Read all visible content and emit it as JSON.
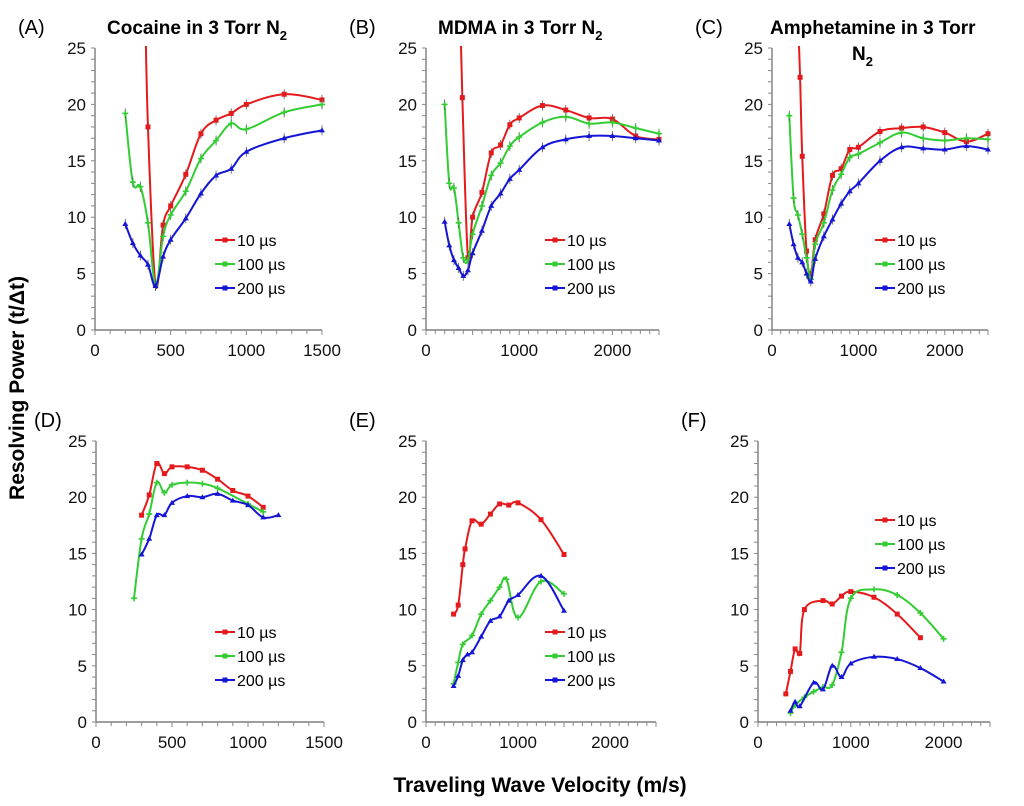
{
  "y_label": "Resolving Power (t/Δt)",
  "x_label": "Traveling Wave Velocity (m/s)",
  "colors": {
    "10 µs": "#e41a1c",
    "100 µs": "#33cc33",
    "200 µs": "#1515d6"
  },
  "chart_data": [
    {
      "id": "A",
      "panel_label": "(A)",
      "type": "line",
      "title": "Cocaine in 3 Torr N",
      "title_sub": "2",
      "xlim": [
        0,
        1500
      ],
      "xticks": [
        "0",
        "500",
        "1000",
        "1500"
      ],
      "ylim": [
        0,
        25
      ],
      "yticks": [
        "0",
        "5",
        "10",
        "15",
        "20",
        "25"
      ],
      "grid": false,
      "error_bars": true,
      "legend": "right-middle",
      "series": [
        {
          "name": "10 µs",
          "x": [
            330,
            350,
            400,
            450,
            500,
            600,
            700,
            800,
            900,
            1000,
            1250,
            1500
          ],
          "y": [
            30,
            18,
            4,
            9.3,
            11,
            13.8,
            17.4,
            18.6,
            19.2,
            20,
            20.9,
            20.4
          ]
        },
        {
          "name": "100 µs",
          "x": [
            200,
            250,
            300,
            350,
            400,
            450,
            500,
            600,
            700,
            800,
            900,
            1000,
            1250,
            1500
          ],
          "y": [
            19.2,
            13.1,
            12.7,
            9.5,
            4,
            8.3,
            10.2,
            12.3,
            15.2,
            16.8,
            18.3,
            17.8,
            19.3,
            20
          ]
        },
        {
          "name": "200 µs",
          "x": [
            200,
            250,
            300,
            350,
            400,
            450,
            500,
            600,
            700,
            800,
            900,
            1000,
            1250,
            1500
          ],
          "y": [
            9.4,
            7.7,
            6.6,
            5.8,
            3.9,
            6.5,
            8,
            9.9,
            12.1,
            13.7,
            14.3,
            15.8,
            17,
            17.7
          ]
        }
      ]
    },
    {
      "id": "B",
      "panel_label": "(B)",
      "type": "line",
      "title": "MDMA in 3 Torr N",
      "title_sub": "2",
      "xlim": [
        0,
        2500
      ],
      "xticks": [
        "0",
        "1000",
        "2000"
      ],
      "ylim": [
        0,
        25
      ],
      "yticks": [
        "0",
        "5",
        "10",
        "15",
        "20",
        "25"
      ],
      "grid": false,
      "error_bars": true,
      "legend": "right-middle",
      "series": [
        {
          "name": "10 µs",
          "x": [
            360,
            390,
            450,
            500,
            600,
            700,
            800,
            900,
            1000,
            1250,
            1500,
            1750,
            2000,
            2250,
            2500
          ],
          "y": [
            30,
            20.6,
            6.4,
            10,
            12.2,
            15.7,
            16.4,
            18.2,
            18.8,
            19.9,
            19.5,
            18.8,
            18.7,
            17.2,
            16.9
          ]
        },
        {
          "name": "100 µs",
          "x": [
            200,
            250,
            300,
            350,
            400,
            450,
            500,
            600,
            700,
            800,
            900,
            1000,
            1250,
            1500,
            1750,
            2000,
            2250,
            2500
          ],
          "y": [
            20,
            13,
            12.6,
            9.5,
            6.4,
            6.2,
            8.5,
            11,
            13.7,
            14.8,
            16.3,
            17.1,
            18.4,
            18.9,
            18.3,
            18.4,
            17.9,
            17.4
          ]
        },
        {
          "name": "200 µs",
          "x": [
            200,
            250,
            300,
            350,
            400,
            450,
            500,
            600,
            700,
            800,
            900,
            1000,
            1250,
            1500,
            1750,
            2000,
            2250,
            2500
          ],
          "y": [
            9.6,
            7.5,
            6.2,
            5.5,
            4.8,
            5.3,
            6.8,
            8.8,
            11,
            12.1,
            13.4,
            14.2,
            16.2,
            16.9,
            17.2,
            17.2,
            17,
            16.8
          ]
        }
      ]
    },
    {
      "id": "C",
      "panel_label": "(C)",
      "type": "line",
      "title": "Amphetamine in 3 Torr",
      "title_line2": "N",
      "title_sub": "2",
      "xlim": [
        0,
        2500
      ],
      "xticks": [
        "0",
        "1000",
        "2000"
      ],
      "ylim": [
        0,
        25
      ],
      "yticks": [
        "0",
        "5",
        "10",
        "15",
        "20",
        "25"
      ],
      "grid": false,
      "error_bars": true,
      "legend": "right-middle",
      "series": [
        {
          "name": "10 µs",
          "x": [
            300,
            325,
            350,
            400,
            450,
            500,
            600,
            700,
            800,
            900,
            1000,
            1250,
            1500,
            1750,
            2000,
            2250,
            2500
          ],
          "y": [
            28,
            22.4,
            15.4,
            7,
            5,
            8,
            10.3,
            13.7,
            14.3,
            16,
            16.2,
            17.6,
            17.9,
            18,
            17.5,
            16.7,
            17.4
          ]
        },
        {
          "name": "100 µs",
          "x": [
            200,
            250,
            300,
            350,
            400,
            450,
            500,
            600,
            700,
            800,
            900,
            1000,
            1250,
            1500,
            1750,
            2000,
            2250,
            2500
          ],
          "y": [
            19,
            11.7,
            10.2,
            8.5,
            6.4,
            4.5,
            7.6,
            9.5,
            12.4,
            13.8,
            15.3,
            15.6,
            16.6,
            17.5,
            17,
            16.8,
            17,
            16.9
          ]
        },
        {
          "name": "200 µs",
          "x": [
            200,
            250,
            300,
            350,
            400,
            450,
            500,
            600,
            700,
            800,
            900,
            1000,
            1250,
            1500,
            1750,
            2000,
            2250,
            2500
          ],
          "y": [
            9.4,
            7.6,
            6.4,
            6,
            5,
            4.3,
            6.3,
            8.3,
            9.8,
            11.2,
            12.3,
            13,
            15,
            16.2,
            16.1,
            16,
            16.3,
            16
          ]
        }
      ]
    },
    {
      "id": "D",
      "panel_label": "(D)",
      "type": "line",
      "title": "",
      "xlim": [
        0,
        1500
      ],
      "xticks": [
        "0",
        "500",
        "1000",
        "1500"
      ],
      "ylim": [
        0,
        25
      ],
      "yticks": [
        "0",
        "5",
        "10",
        "15",
        "20",
        "25"
      ],
      "grid": false,
      "error_bars": false,
      "legend": "right-lower",
      "series": [
        {
          "name": "10 µs",
          "x": [
            300,
            350,
            400,
            450,
            500,
            600,
            700,
            800,
            900,
            1000,
            1100
          ],
          "y": [
            18.4,
            20.2,
            23,
            22.1,
            22.7,
            22.7,
            22.4,
            21.6,
            20.6,
            20.1,
            19.1
          ]
        },
        {
          "name": "100 µs",
          "x": [
            250,
            300,
            350,
            400,
            450,
            500,
            600,
            700,
            800,
            1000,
            1100
          ],
          "y": [
            11,
            16.3,
            18.5,
            21.3,
            20.4,
            21.1,
            21.3,
            21.2,
            20.8,
            19.4,
            18.7
          ]
        },
        {
          "name": "200 µs",
          "x": [
            300,
            350,
            400,
            450,
            500,
            600,
            700,
            800,
            900,
            1000,
            1100,
            1200
          ],
          "y": [
            14.9,
            16.3,
            18.4,
            18.4,
            19.5,
            20.1,
            20,
            20.3,
            19.7,
            19.3,
            18.2,
            18.4
          ]
        }
      ]
    },
    {
      "id": "E",
      "panel_label": "(E)",
      "type": "line",
      "title": "",
      "xlim": [
        0,
        2500
      ],
      "xticks": [
        "0",
        "1000",
        "2000"
      ],
      "ylim": [
        0,
        25
      ],
      "yticks": [
        "0",
        "5",
        "10",
        "15",
        "20",
        "25"
      ],
      "grid": false,
      "error_bars": false,
      "legend": "right-lower",
      "series": [
        {
          "name": "10 µs",
          "x": [
            300,
            350,
            400,
            425,
            500,
            600,
            700,
            800,
            900,
            1000,
            1250,
            1500
          ],
          "y": [
            9.6,
            10.4,
            14,
            15.4,
            17.9,
            17.6,
            18.5,
            19.4,
            19.3,
            19.5,
            18,
            14.9
          ]
        },
        {
          "name": "100 µs",
          "x": [
            300,
            350,
            400,
            500,
            600,
            700,
            800,
            875,
            1000,
            1250,
            1500
          ],
          "y": [
            3.4,
            5.3,
            6.9,
            7.7,
            9.6,
            10.8,
            12,
            12.7,
            9.3,
            12.5,
            11.4
          ]
        },
        {
          "name": "200 µs",
          "x": [
            300,
            350,
            400,
            450,
            500,
            600,
            700,
            800,
            900,
            1000,
            1250,
            1500
          ],
          "y": [
            3.2,
            4.1,
            5.5,
            6,
            6.2,
            7.6,
            9,
            9.4,
            10.8,
            11.3,
            13,
            9.9
          ]
        }
      ]
    },
    {
      "id": "F",
      "panel_label": "(F)",
      "type": "line",
      "title": "",
      "xlim": [
        0,
        2500
      ],
      "xticks": [
        "0",
        "1000",
        "2000"
      ],
      "ylim": [
        0,
        25
      ],
      "yticks": [
        "0",
        "5",
        "10",
        "15",
        "20",
        "25"
      ],
      "grid": false,
      "error_bars": false,
      "legend": "right-upper",
      "series": [
        {
          "name": "10 µs",
          "x": [
            300,
            350,
            400,
            450,
            500,
            700,
            800,
            900,
            1000,
            1250,
            1500,
            1750
          ],
          "y": [
            2.5,
            4.5,
            6.5,
            6.1,
            10,
            10.8,
            10.5,
            11.2,
            11.6,
            11.1,
            9.6,
            7.5
          ]
        },
        {
          "name": "100 µs",
          "x": [
            350,
            400,
            500,
            600,
            700,
            800,
            900,
            1000,
            1250,
            1500,
            1750,
            2000
          ],
          "y": [
            0.8,
            1.5,
            2.2,
            2.7,
            3.1,
            3.3,
            6.2,
            11,
            11.8,
            11.3,
            9.7,
            7.4
          ]
        },
        {
          "name": "200 µs",
          "x": [
            350,
            400,
            450,
            600,
            700,
            800,
            900,
            1000,
            1250,
            1500,
            1750,
            2000
          ],
          "y": [
            1,
            1.8,
            1.4,
            3.5,
            2.9,
            5,
            4,
            5.2,
            5.8,
            5.6,
            4.8,
            3.6
          ]
        }
      ]
    }
  ]
}
